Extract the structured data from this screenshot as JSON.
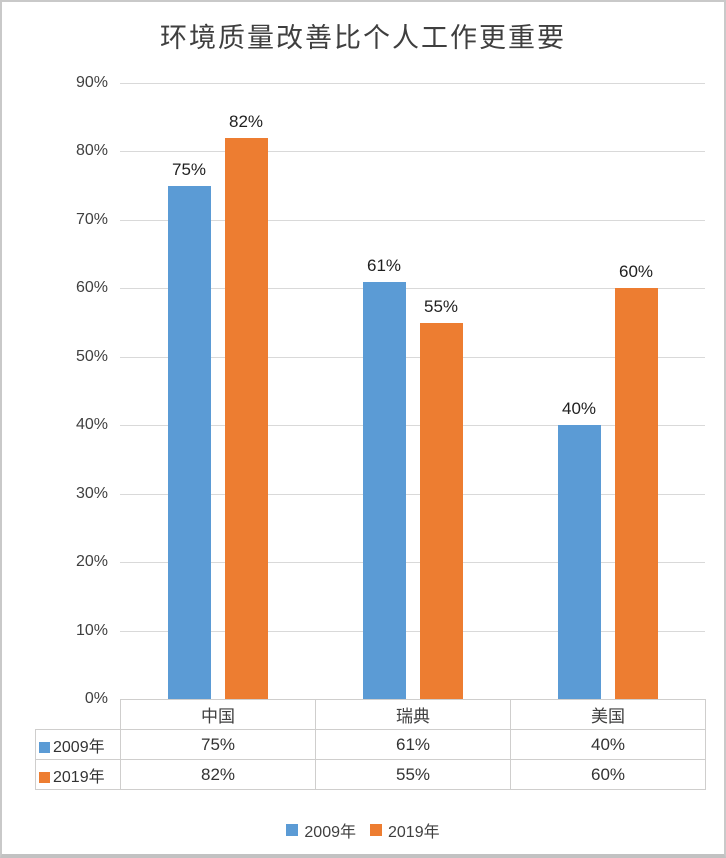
{
  "chart_data": {
    "type": "bar",
    "title": "环境质量改善比个人工作更重要",
    "categories": [
      "中国",
      "瑞典",
      "美国"
    ],
    "series": [
      {
        "name": "2009年",
        "color": "#5B9BD5",
        "values": [
          75,
          61,
          40
        ]
      },
      {
        "name": "2019年",
        "color": "#ED7D31",
        "values": [
          82,
          55,
          60
        ]
      }
    ],
    "value_suffix": "%",
    "ylim": [
      0,
      90
    ],
    "ytick_step": 10,
    "ytick_labels": [
      "0%",
      "10%",
      "20%",
      "30%",
      "40%",
      "50%",
      "60%",
      "70%",
      "80%",
      "90%"
    ],
    "grid": true,
    "legend_position": "bottom",
    "show_data_table": true,
    "data_table": {
      "column_headers": [
        "中国",
        "瑞典",
        "美国"
      ],
      "rows": [
        {
          "label": "2009年",
          "values": [
            "75%",
            "61%",
            "40%"
          ]
        },
        {
          "label": "2019年",
          "values": [
            "82%",
            "55%",
            "60%"
          ]
        }
      ]
    },
    "bar_labels": [
      [
        "75%",
        "61%",
        "40%"
      ],
      [
        "82%",
        "55%",
        "60%"
      ]
    ]
  },
  "colors": {
    "series_2009": "#5B9BD5",
    "series_2019": "#ED7D31",
    "gridline": "#d9d9d9",
    "table_border": "#cfcecd",
    "axis_text": "#404040",
    "title_text": "#3f3f3f"
  }
}
